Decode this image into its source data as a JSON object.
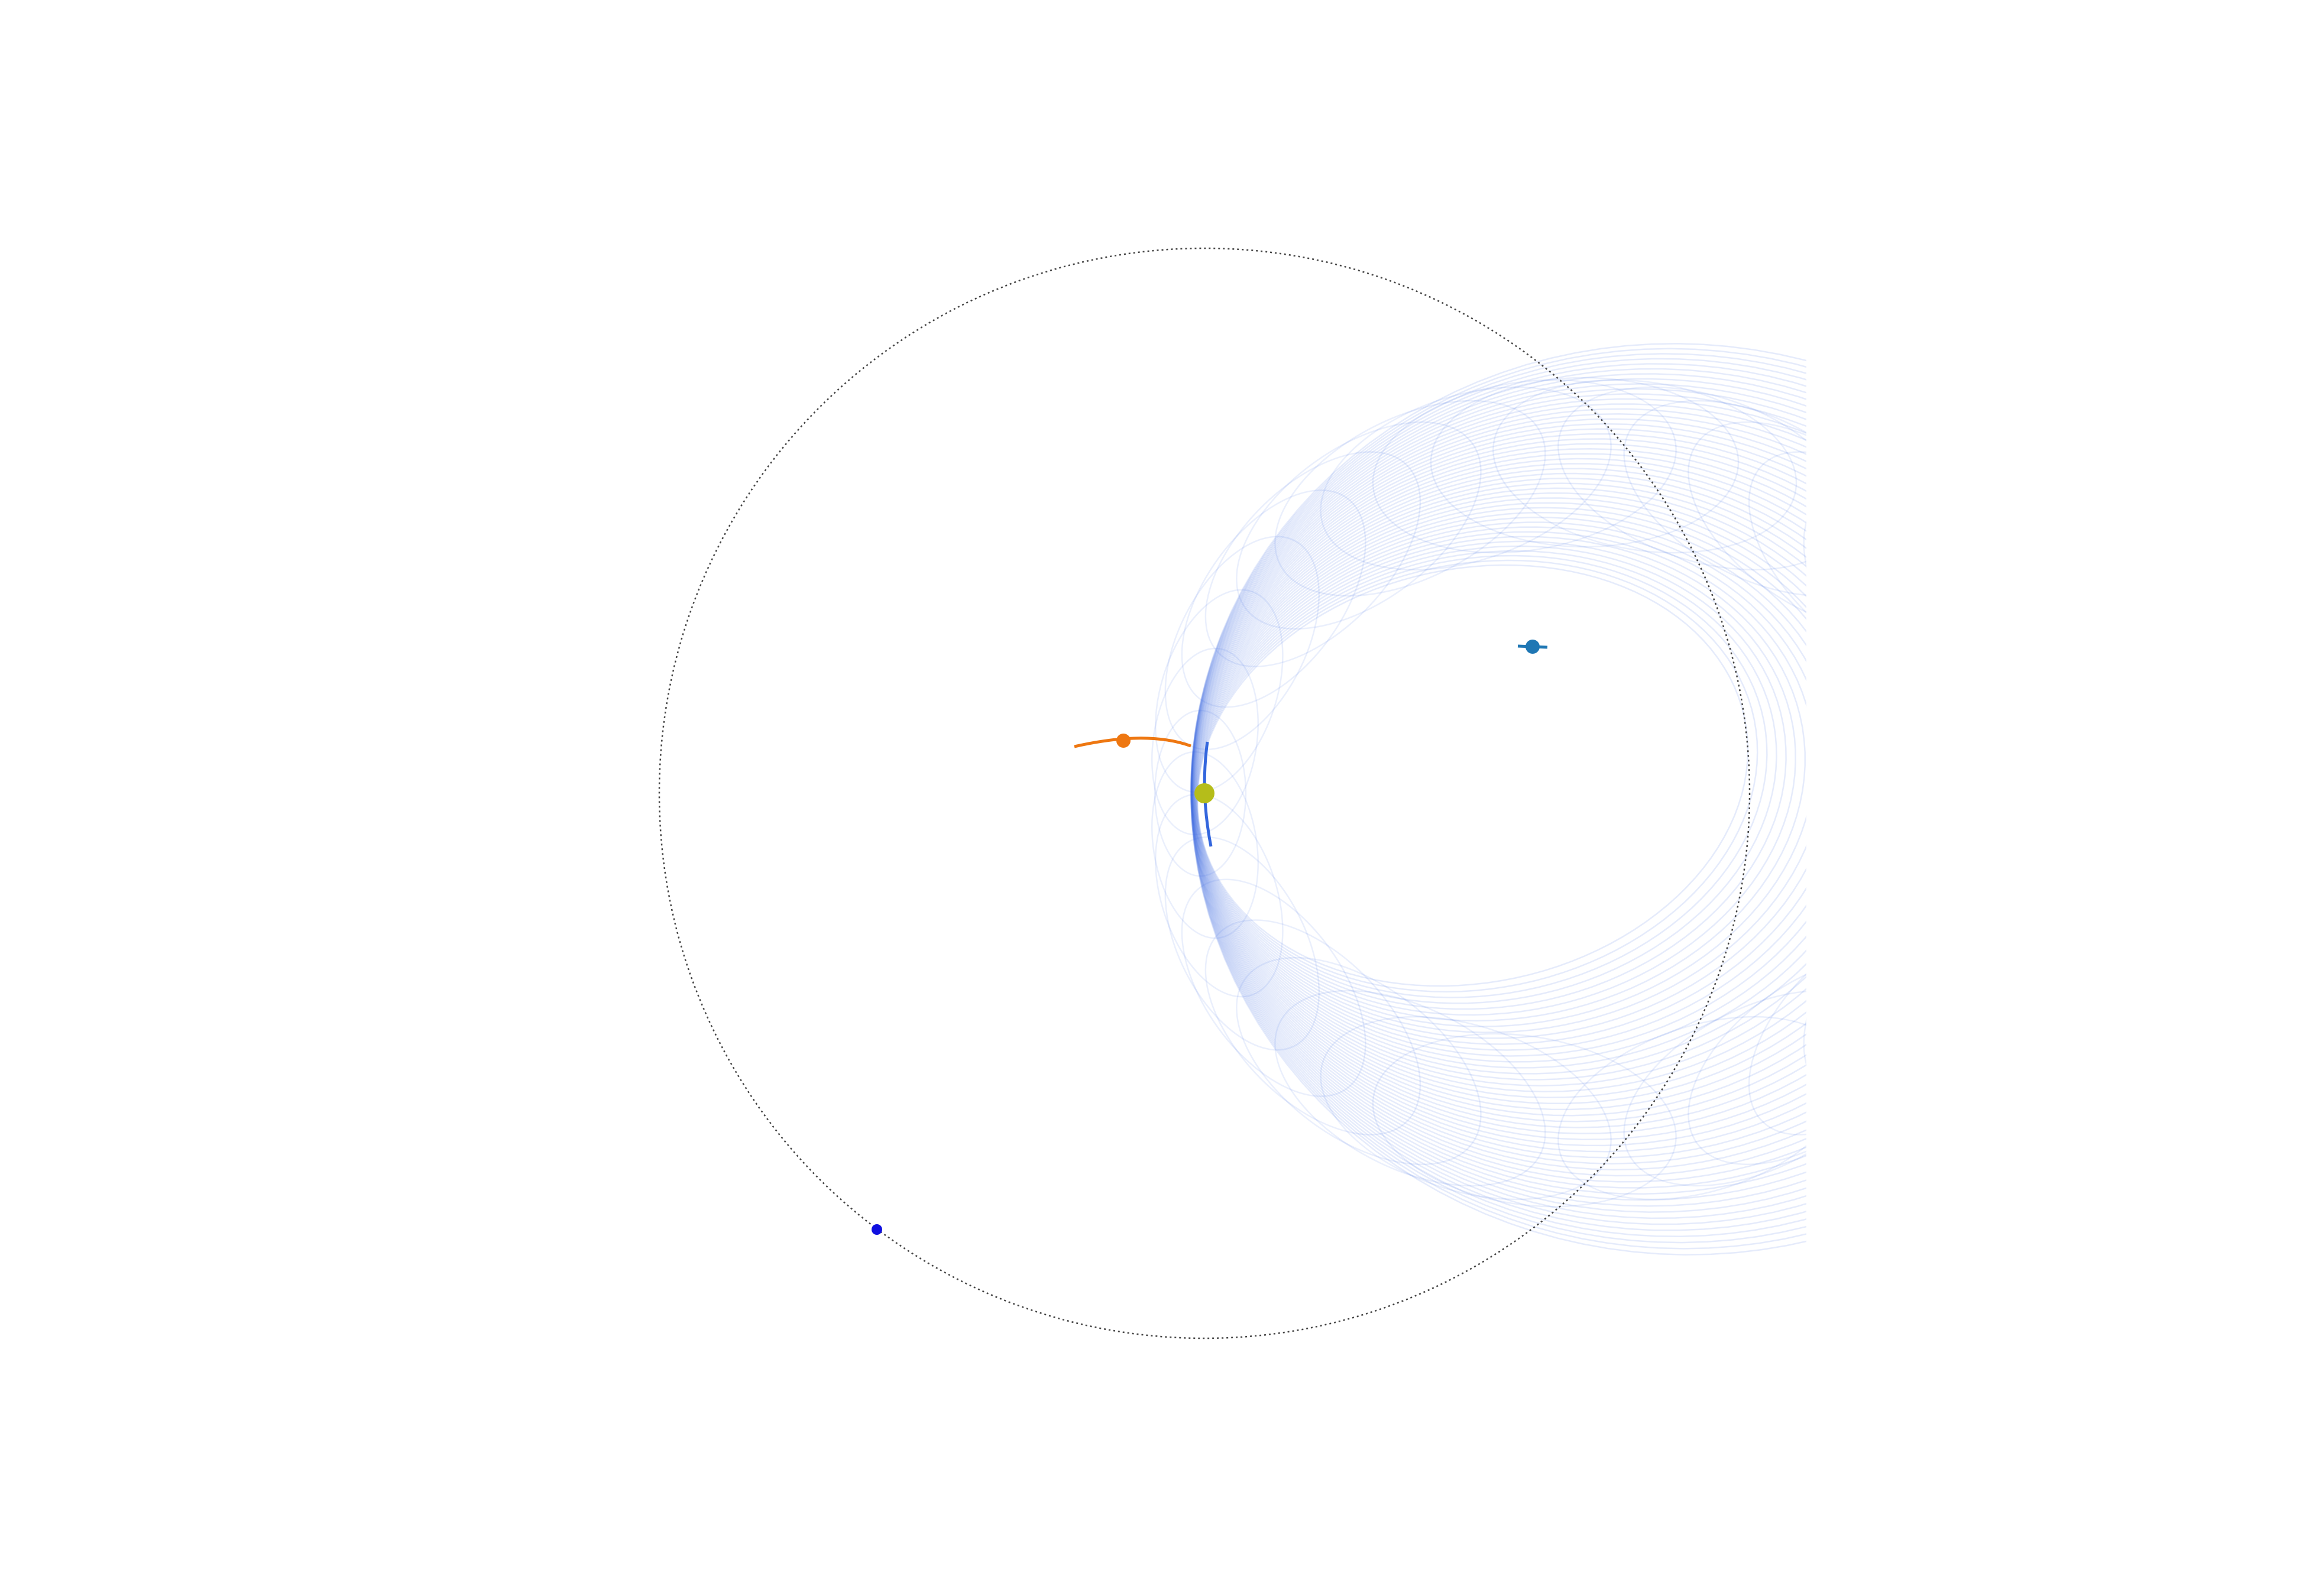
{
  "diagram": {
    "type": "orbital-simulation",
    "background": "#ffffff",
    "colors": {
      "boundary_circle": "#444444",
      "trajectory_bundle": "#3366dd",
      "inner_body": "#ee7711",
      "outer_body": "#1f77b4",
      "center_body": "#b5bd1a",
      "marker_point": "#1010e0"
    },
    "elements": [
      "boundary-orbit",
      "trajectory-bundle",
      "inner-body",
      "outer-body",
      "center-body",
      "marker-point"
    ]
  }
}
